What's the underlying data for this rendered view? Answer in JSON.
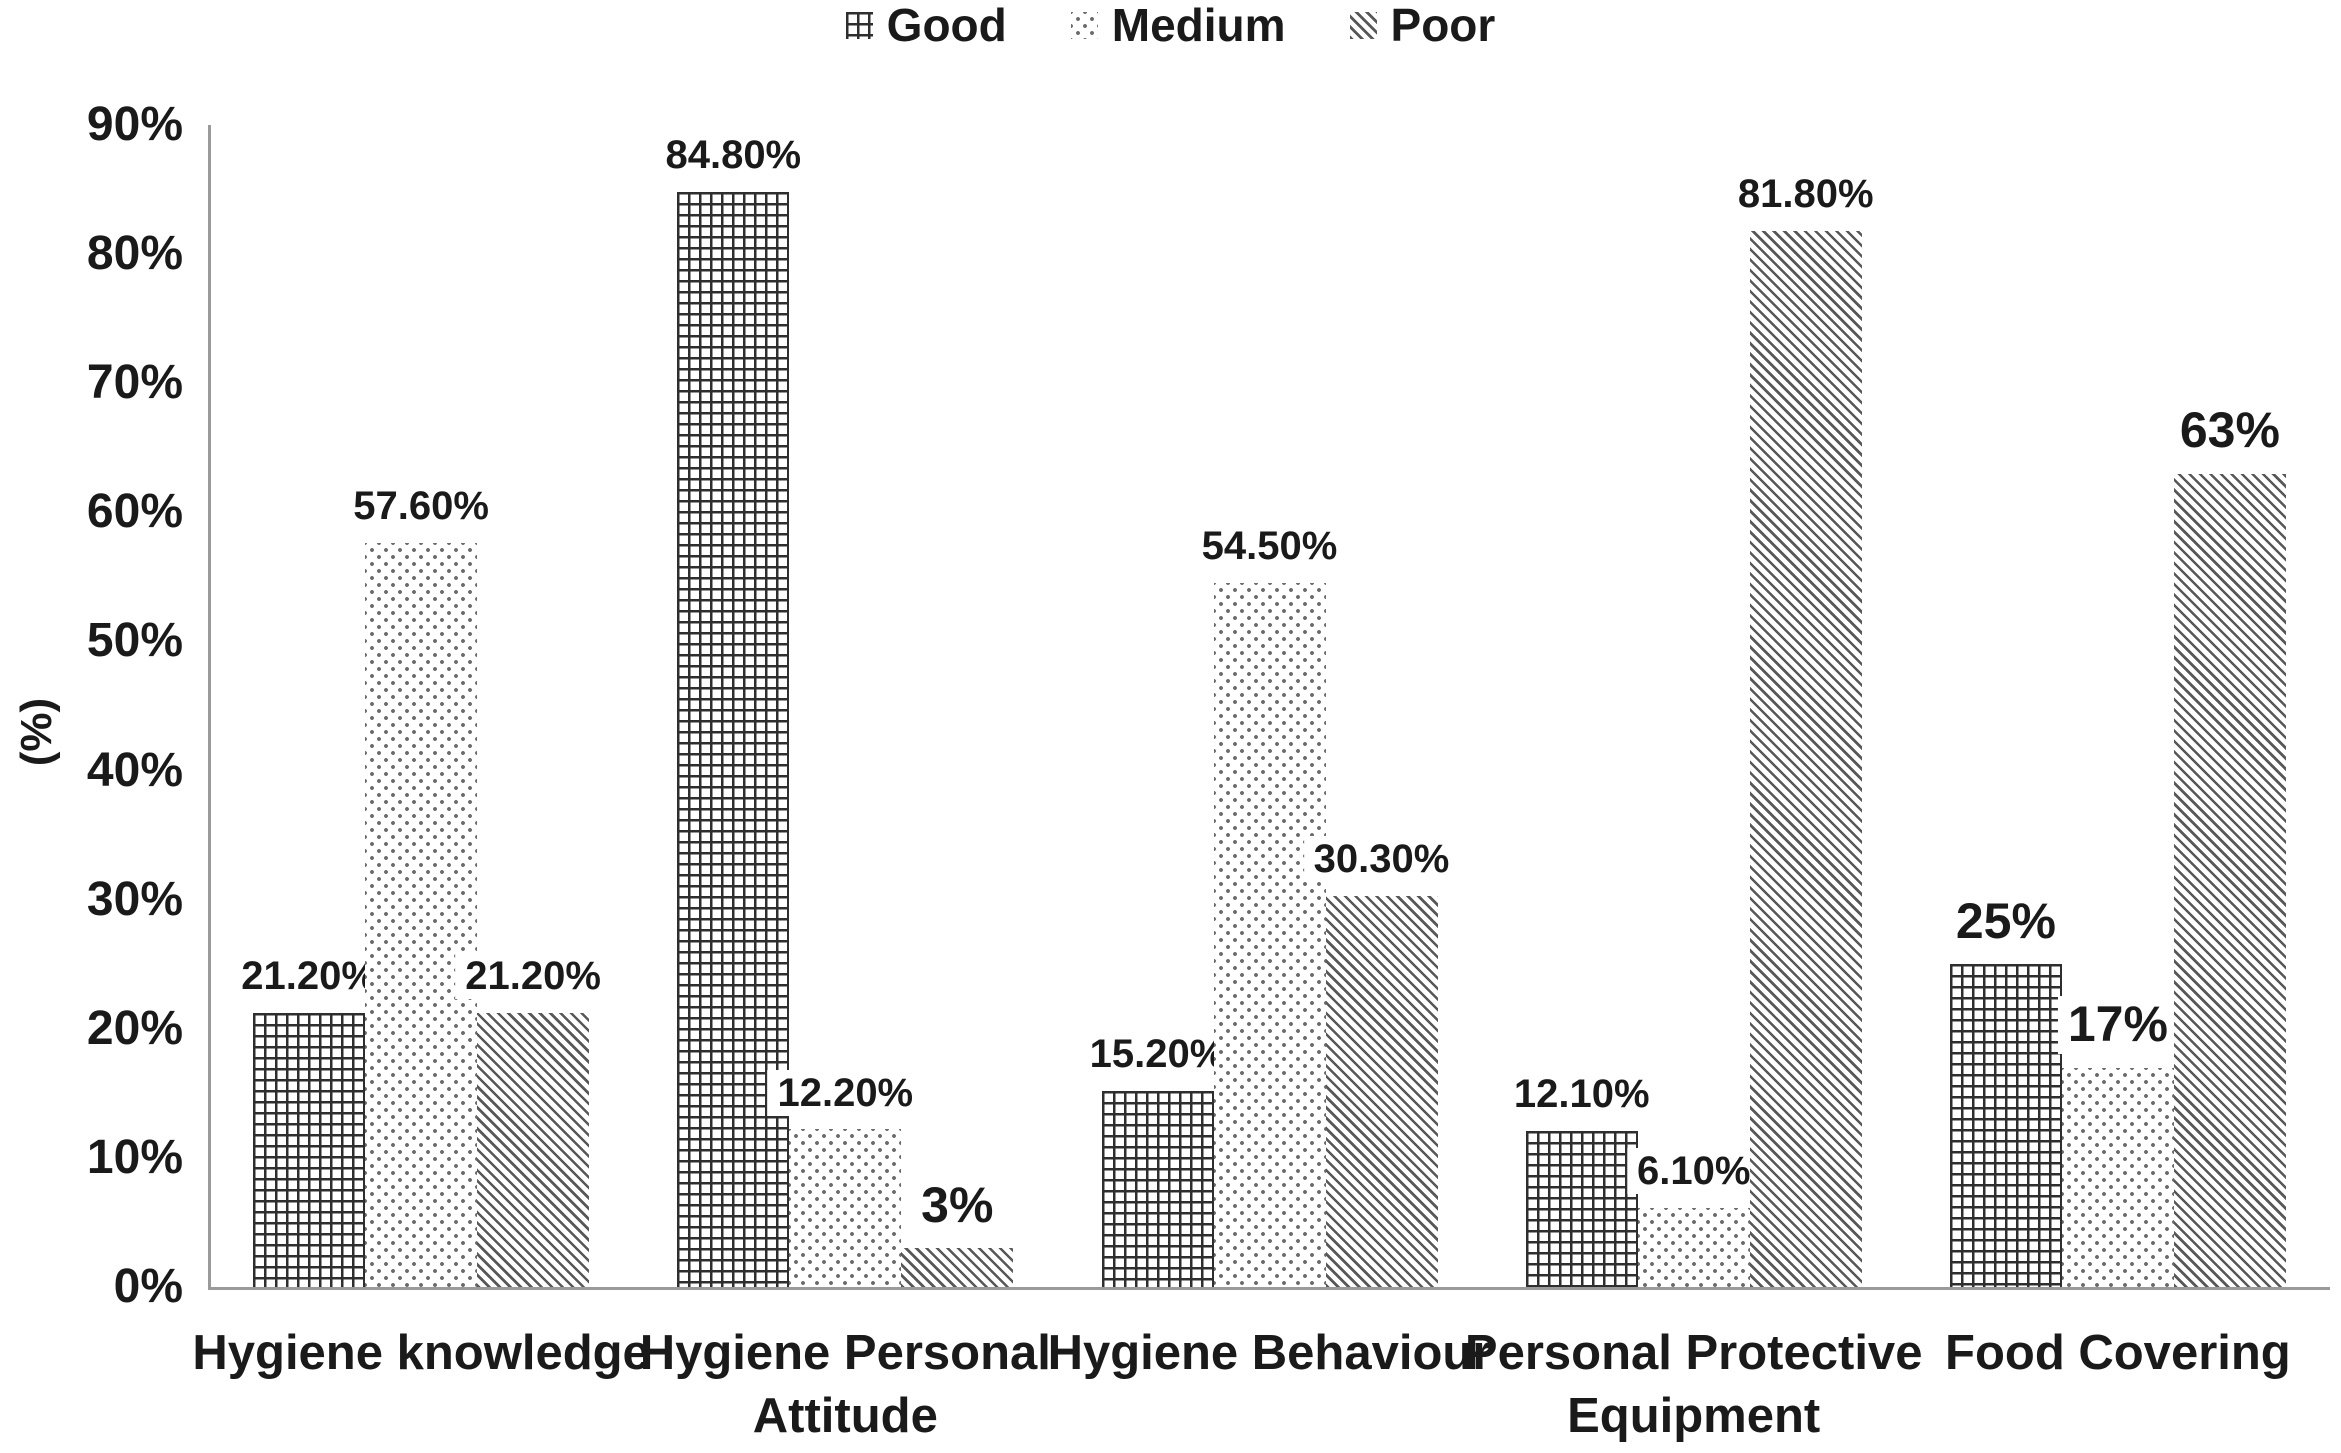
{
  "legend": {
    "items": [
      {
        "label": "Good",
        "pattern": "grid",
        "icon": "grid-pattern-icon",
        "ink_color": "#2e2e2e"
      },
      {
        "label": "Medium",
        "pattern": "dots",
        "icon": "dots-pattern-icon",
        "ink_color": "#6b6b6b"
      },
      {
        "label": "Poor",
        "pattern": "diag",
        "icon": "diagonal-pattern-icon",
        "ink_color": "#585858"
      }
    ]
  },
  "chart_data": {
    "type": "bar",
    "title": "",
    "xlabel": "",
    "ylabel": "(%)",
    "ylim": [
      0,
      90
    ],
    "yticks": [
      "90%",
      "80%",
      "70%",
      "60%",
      "50%",
      "40%",
      "30%",
      "20%",
      "10%",
      "0%"
    ],
    "grid": false,
    "legend_position": "top-center",
    "categories": [
      "Hygiene knowledge",
      "Hygiene Personal Attitude",
      "Hygiene Behaviour",
      "Personal Protective Equipment",
      "Food Covering"
    ],
    "series": [
      {
        "name": "Good",
        "pattern": "grid",
        "values": [
          21.2,
          84.8,
          15.2,
          12.1,
          25
        ],
        "labels": [
          "21.20%",
          "84.80%",
          "15.20%",
          "12.10%",
          "25%"
        ]
      },
      {
        "name": "Medium",
        "pattern": "dots",
        "values": [
          57.6,
          12.2,
          54.5,
          6.1,
          17
        ],
        "labels": [
          "57.60%",
          "12.20%",
          "54.50%",
          "6.10%",
          "17%"
        ]
      },
      {
        "name": "Poor",
        "pattern": "diag",
        "values": [
          21.2,
          3,
          30.3,
          81.8,
          63
        ],
        "labels": [
          "21.20%",
          "3%",
          "30.30%",
          "81.80%",
          "63%"
        ]
      }
    ]
  }
}
